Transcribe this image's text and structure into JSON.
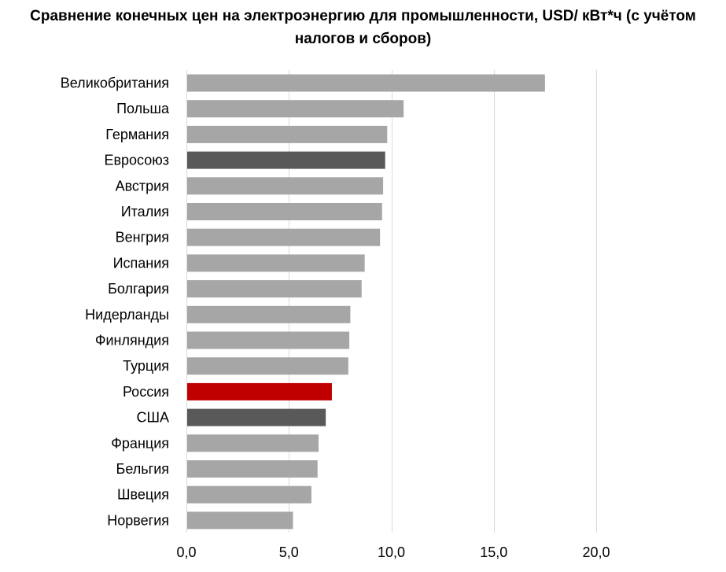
{
  "chart_data": {
    "type": "bar",
    "orientation": "horizontal",
    "title": "Сравнение конечных цен на электроэнергию для промышленности, USD/ кВт*ч (с учётом налогов и сборов)",
    "categories": [
      "Великобритания",
      "Польша",
      "Германия",
      "Евросоюз",
      "Австрия",
      "Италия",
      "Венгрия",
      "Испания",
      "Болгария",
      "Нидерланды",
      "Финляндия",
      "Турция",
      "Россия",
      "США",
      "Франция",
      "Бельгия",
      "Швеция",
      "Норвегия"
    ],
    "values": [
      17.5,
      10.6,
      9.8,
      9.7,
      9.6,
      9.55,
      9.45,
      8.7,
      8.55,
      8.0,
      7.95,
      7.9,
      7.1,
      6.8,
      6.45,
      6.4,
      6.1,
      5.2
    ],
    "bar_colors": [
      "#a6a6a6",
      "#a6a6a6",
      "#a6a6a6",
      "#595959",
      "#a6a6a6",
      "#a6a6a6",
      "#a6a6a6",
      "#a6a6a6",
      "#a6a6a6",
      "#a6a6a6",
      "#a6a6a6",
      "#a6a6a6",
      "#c00000",
      "#595959",
      "#a6a6a6",
      "#a6a6a6",
      "#a6a6a6",
      "#a6a6a6"
    ],
    "xlim": [
      0,
      20
    ],
    "x_ticks": [
      "0,0",
      "5,0",
      "10,0",
      "15,0",
      "20,0"
    ],
    "x_tick_values": [
      0,
      5,
      10,
      15,
      20
    ],
    "grid": true,
    "grid_color": "#d9d9d9",
    "legend": false
  }
}
